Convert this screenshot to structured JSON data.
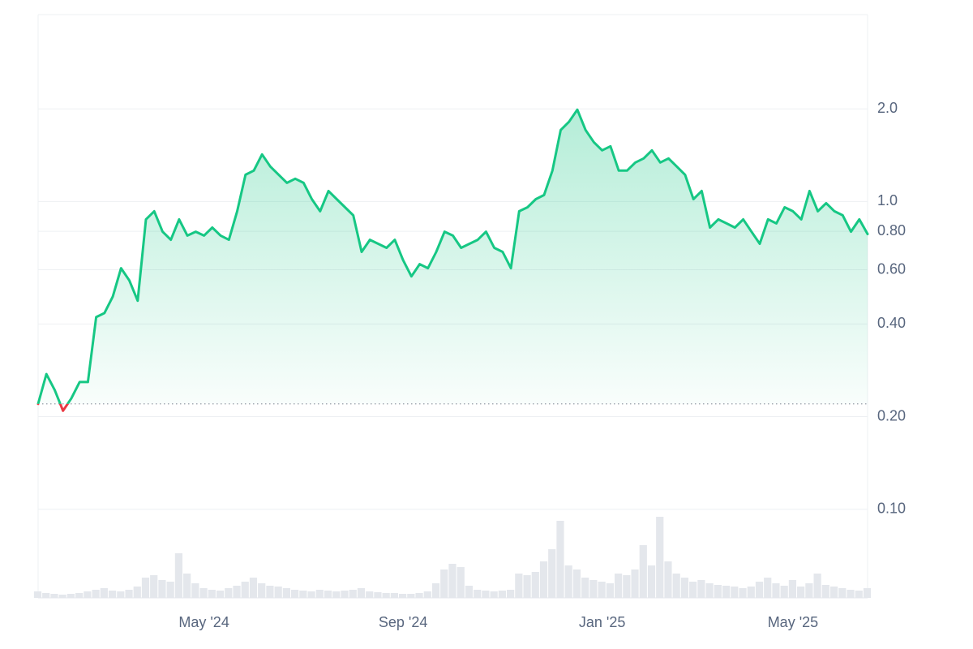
{
  "chart_data": {
    "type": "line",
    "log_scale": true,
    "grid": true,
    "ylim": [
      0.0515,
      4.05
    ],
    "yticks": [
      {
        "value": 0.1,
        "label": "0.10"
      },
      {
        "value": 0.2,
        "label": "0.20"
      },
      {
        "value": 0.4,
        "label": "0.40"
      },
      {
        "value": 0.6,
        "label": "0.60"
      },
      {
        "value": 0.8,
        "label": "0.80"
      },
      {
        "value": 1,
        "label": "1.0"
      },
      {
        "value": 2,
        "label": "2.0"
      }
    ],
    "baseline": 0.22,
    "color": "#16c784",
    "negative_color": "#ea3943",
    "categories": [
      null,
      null,
      null,
      null,
      null,
      null,
      null,
      null,
      null,
      null,
      null,
      null,
      null,
      null,
      null,
      null,
      null,
      null,
      null,
      null,
      "May '24",
      null,
      null,
      null,
      null,
      null,
      null,
      null,
      null,
      null,
      null,
      null,
      null,
      null,
      null,
      null,
      null,
      null,
      null,
      null,
      null,
      null,
      null,
      null,
      "Sep '24",
      null,
      null,
      null,
      null,
      null,
      null,
      null,
      null,
      null,
      null,
      null,
      null,
      null,
      null,
      null,
      null,
      null,
      null,
      null,
      null,
      null,
      null,
      null,
      "Jan '25",
      null,
      null,
      null,
      null,
      null,
      null,
      null,
      null,
      null,
      null,
      null,
      null,
      null,
      null,
      null,
      null,
      null,
      null,
      null,
      null,
      null,
      null,
      "May '25",
      null,
      null,
      null,
      null,
      null,
      null,
      null,
      null,
      null
    ],
    "values": [
      0.22,
      0.275,
      0.244,
      0.209,
      0.229,
      0.259,
      0.259,
      0.421,
      0.434,
      0.491,
      0.607,
      0.554,
      0.476,
      0.875,
      0.93,
      0.798,
      0.751,
      0.875,
      0.775,
      0.798,
      0.775,
      0.823,
      0.775,
      0.751,
      0.93,
      1.222,
      1.26,
      1.423,
      1.299,
      1.222,
      1.15,
      1.186,
      1.15,
      1.018,
      0.93,
      1.082,
      1.018,
      0.958,
      0.902,
      0.686,
      0.751,
      0.729,
      0.707,
      0.751,
      0.645,
      0.571,
      0.626,
      0.607,
      0.686,
      0.798,
      0.775,
      0.707,
      0.729,
      0.751,
      0.798,
      0.707,
      0.686,
      0.607,
      0.93,
      0.958,
      1.018,
      1.05,
      1.26,
      1.707,
      1.815,
      1.988,
      1.707,
      1.559,
      1.467,
      1.512,
      1.26,
      1.26,
      1.339,
      1.38,
      1.467,
      1.339,
      1.38,
      1.299,
      1.222,
      1.018,
      1.082,
      0.823,
      0.875,
      0.849,
      0.823,
      0.875,
      0.798,
      0.729,
      0.875,
      0.849,
      0.958,
      0.93,
      0.875,
      1.082,
      0.93,
      0.988,
      0.93,
      0.902,
      0.798,
      0.875,
      0.784
    ],
    "volume": {
      "color": "#e4e7ec",
      "y2lim": [
        0,
        100
      ],
      "values": [
        8,
        6,
        5,
        4,
        5,
        6,
        8,
        10,
        12,
        9,
        8,
        10,
        14,
        25,
        28,
        22,
        20,
        55,
        30,
        18,
        12,
        10,
        9,
        12,
        15,
        20,
        25,
        18,
        15,
        14,
        12,
        10,
        9,
        8,
        10,
        9,
        8,
        9,
        10,
        12,
        8,
        7,
        6,
        6,
        5,
        5,
        6,
        8,
        18,
        35,
        42,
        38,
        15,
        10,
        9,
        8,
        9,
        10,
        30,
        28,
        32,
        45,
        60,
        95,
        40,
        35,
        25,
        22,
        20,
        18,
        30,
        28,
        35,
        65,
        40,
        100,
        45,
        30,
        25,
        20,
        22,
        18,
        16,
        15,
        14,
        12,
        14,
        20,
        25,
        18,
        15,
        22,
        14,
        18,
        30,
        16,
        14,
        12,
        10,
        9,
        12
      ]
    }
  }
}
